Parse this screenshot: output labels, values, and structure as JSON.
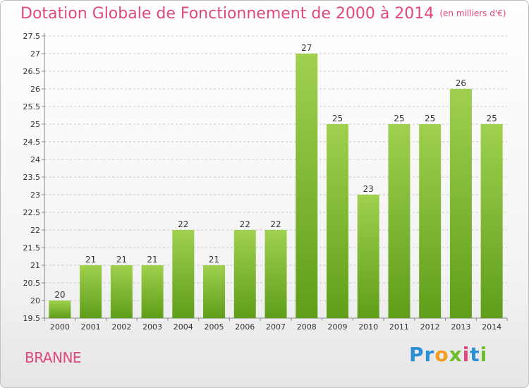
{
  "title": "Dotation Globale de Fonctionnement de 2000 à 2014",
  "subtitle": "(en milliers d'€)",
  "location": "BRANNE",
  "logo": {
    "parts": [
      "Pr",
      "o",
      "x",
      "i",
      "t",
      "i"
    ],
    "icon": "proxiti-logo"
  },
  "chart_data": {
    "type": "bar",
    "categories": [
      "2000",
      "2001",
      "2002",
      "2003",
      "2004",
      "2005",
      "2006",
      "2007",
      "2008",
      "2009",
      "2010",
      "2011",
      "2012",
      "2013",
      "2014"
    ],
    "values": [
      20,
      21,
      21,
      21,
      22,
      21,
      22,
      22,
      27,
      25,
      23,
      25,
      25,
      26,
      25
    ],
    "data_labels": [
      "20",
      "21",
      "21",
      "21",
      "22",
      "21",
      "22",
      "22",
      "27",
      "25",
      "23",
      "25",
      "25",
      "26",
      "25"
    ],
    "yticks": [
      "19.5",
      "20",
      "20.5",
      "21",
      "21.5",
      "22",
      "22.5",
      "23",
      "23.5",
      "24",
      "24.5",
      "25",
      "25.5",
      "26",
      "26.5",
      "27",
      "27.5"
    ],
    "ylim": [
      19.5,
      27.5
    ],
    "grid": "horizontal-dashed",
    "legend": "none",
    "colors": {
      "bar_top": "#9fd04e",
      "bar_bottom": "#5f9e1a",
      "grid": "#c8c8c8",
      "axis": "#888888",
      "text": "#333333"
    }
  }
}
